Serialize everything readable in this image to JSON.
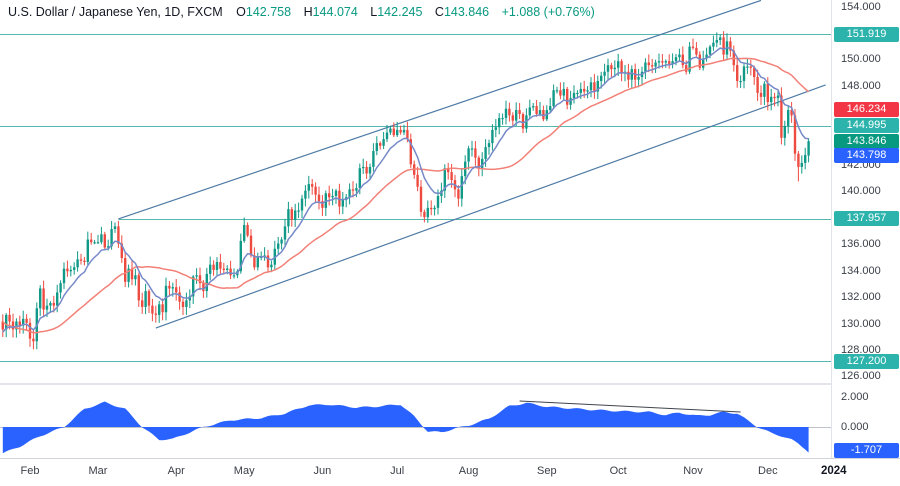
{
  "header": {
    "symbol_title": "U.S. Dollar / Japanese Yen, 1D, FXCM",
    "o_label": "O",
    "o_value": "142.758",
    "h_label": "H",
    "h_value": "144.074",
    "l_label": "L",
    "l_value": "142.245",
    "c_label": "C",
    "c_value": "143.846",
    "change": "+1.088 (+0.76%)"
  },
  "colors": {
    "up": "#119988",
    "down": "#ee4b40",
    "ma_fast": "#7689c8",
    "ma_slow": "#f28077",
    "level": "#54b8b1",
    "channel": "#4f7ba6",
    "osc_fill": "#2962ff",
    "osc_zero": "#c0c3ca",
    "osc_trendline": "#40444c",
    "badge_teal": "#2bb3ac",
    "badge_red": "#f23645",
    "badge_green": "#089981",
    "badge_blue": "#2962ff"
  },
  "price_axis": {
    "plain_ticks": [
      154,
      150,
      148,
      142,
      140,
      136,
      134,
      132,
      130,
      128,
      126
    ],
    "badges": [
      {
        "label": "151.919",
        "price": 151.919,
        "color": "teal"
      },
      {
        "label": "146.234",
        "price": 146.234,
        "color": "red"
      },
      {
        "label": "144.995",
        "price": 144.995,
        "color": "teal"
      },
      {
        "label": "143.846",
        "price": 143.846,
        "color": "green"
      },
      {
        "label": "143.798",
        "price": 143.798,
        "color": "blue",
        "stack_after": 143.846
      },
      {
        "label": "137.957",
        "price": 137.957,
        "color": "teal"
      },
      {
        "label": "127.200",
        "price": 127.2,
        "color": "teal"
      }
    ]
  },
  "indicator_axis": {
    "ticks": [
      2,
      0,
      -2
    ],
    "badge": {
      "label": "-1.707",
      "value": -1.707,
      "color": "blue"
    }
  },
  "time_axis": {
    "months": [
      [
        "Feb",
        8
      ],
      [
        "Mar",
        28
      ],
      [
        "Apr",
        51
      ],
      [
        "May",
        71
      ],
      [
        "Jun",
        94
      ],
      [
        "Jul",
        116
      ],
      [
        "Aug",
        137
      ],
      [
        "Sep",
        160
      ],
      [
        "Oct",
        181
      ],
      [
        "Nov",
        203
      ],
      [
        "Dec",
        225
      ]
    ],
    "year_label": "2024"
  },
  "chart_data": {
    "type": "candlestick_with_oscillator",
    "title": "U.S. Dollar / Japanese Yen, 1D, FXCM",
    "price_range": [
      126,
      154
    ],
    "ma_fast_period": 9,
    "ma_slow_period": 30,
    "warmup_closes": [
      133.5,
      133.0,
      132.6,
      132.2,
      132.5,
      132.0,
      131.6,
      131.9,
      132.0,
      131.5,
      131.1,
      130.7,
      130.3,
      129.9,
      129.5,
      129.1,
      128.7,
      128.4,
      128.0,
      127.6,
      127.3,
      127.6,
      128.0,
      128.4,
      128.8,
      129.2,
      129.6,
      130.0,
      129.8,
      130.2
    ],
    "closes": [
      129.6,
      130.7,
      130.2,
      129.6,
      130.2,
      129.9,
      130.4,
      130.1,
      128.9,
      128.7,
      131.2,
      132.7,
      131.1,
      131.4,
      131.6,
      131.4,
      132.4,
      133.1,
      134.2,
      134.0,
      134.1,
      134.3,
      134.9,
      134.8,
      134.7,
      136.4,
      136.2,
      136.2,
      136.2,
      136.8,
      135.8,
      135.9,
      137.2,
      137.4,
      136.1,
      135.0,
      133.2,
      134.2,
      133.4,
      133.7,
      131.8,
      131.3,
      132.5,
      131.4,
      130.8,
      130.7,
      131.5,
      130.9,
      132.9,
      132.7,
      132.8,
      132.4,
      131.7,
      131.3,
      131.8,
      132.1,
      133.6,
      133.7,
      133.1,
      132.5,
      133.8,
      134.5,
      134.1,
      134.7,
      134.2,
      134.1,
      134.2,
      133.7,
      133.7,
      134.0,
      136.3,
      137.5,
      136.7,
      135.2,
      134.3,
      135.1,
      135.1,
      135.2,
      134.3,
      134.5,
      135.7,
      136.1,
      136.4,
      137.4,
      138.7,
      137.9,
      138.6,
      138.6,
      139.5,
      140.1,
      140.6,
      140.4,
      139.8,
      139.3,
      138.8,
      139.9,
      139.6,
      139.7,
      140.1,
      138.9,
      139.4,
      139.6,
      140.2,
      140.1,
      140.3,
      141.8,
      141.9,
      141.4,
      141.9,
      143.1,
      143.7,
      143.5,
      144.0,
      144.5,
      144.8,
      144.3,
      144.7,
      144.5,
      144.7,
      144.0,
      142.1,
      141.3,
      140.4,
      138.5,
      138.1,
      138.8,
      138.7,
      138.8,
      139.7,
      140.1,
      141.8,
      141.5,
      140.9,
      140.2,
      139.5,
      141.2,
      142.3,
      143.3,
      143.3,
      142.6,
      141.8,
      142.5,
      143.4,
      143.7,
      144.7,
      144.9,
      145.6,
      145.6,
      146.3,
      145.8,
      145.4,
      146.2,
      145.9,
      144.8,
      145.8,
      146.4,
      146.5,
      145.9,
      146.2,
      145.5,
      146.2,
      146.5,
      147.7,
      147.7,
      147.3,
      147.8,
      146.6,
      147.1,
      147.5,
      147.5,
      147.8,
      147.6,
      147.7,
      148.3,
      147.6,
      148.4,
      148.8,
      149.1,
      149.6,
      149.3,
      149.4,
      149.9,
      149.0,
      149.1,
      148.5,
      149.3,
      148.5,
      148.7,
      149.1,
      149.8,
      149.6,
      149.5,
      149.8,
      149.9,
      149.8,
      149.9,
      149.7,
      149.9,
      150.2,
      150.4,
      149.6,
      149.1,
      151.0,
      150.9,
      150.4,
      149.4,
      150.1,
      150.4,
      151.0,
      151.3,
      151.5,
      151.7,
      150.4,
      151.4,
      150.7,
      149.6,
      148.4,
      148.4,
      149.5,
      149.5,
      149.4,
      148.7,
      147.5,
      147.2,
      148.2,
      146.8,
      147.2,
      147.1,
      147.3,
      144.1,
      145.0,
      146.2,
      145.8,
      142.9,
      141.9,
      142.2,
      142.8,
      143.846
    ],
    "last_candle": {
      "open": 142.758,
      "high": 144.074,
      "low": 142.245,
      "close": 143.846
    },
    "special_bars": {
      "211": {
        "high": 151.919
      },
      "229": {
        "low": 143.6
      },
      "234": {
        "low": 140.8
      }
    },
    "levels": [
      {
        "price": 151.919,
        "from_index": null
      },
      {
        "price": 144.995,
        "from_index": null
      },
      {
        "price": 137.957,
        "from_index": 34
      },
      {
        "price": 127.2,
        "from_index": null
      }
    ],
    "channel_lines": [
      {
        "i1": 34,
        "p1": 137.96,
        "i2": 223,
        "p2": 154.5
      },
      {
        "i1": 45,
        "p1": 129.7,
        "i2": 242,
        "p2": 148.1
      }
    ],
    "oscillator": {
      "points": [
        [
          0,
          -1.75
        ],
        [
          5,
          -1.3
        ],
        [
          11,
          -0.6
        ],
        [
          18,
          0.0
        ],
        [
          24,
          1.2
        ],
        [
          30,
          1.65
        ],
        [
          36,
          1.2
        ],
        [
          41,
          0.0
        ],
        [
          46,
          -0.85
        ],
        [
          50,
          -0.8
        ],
        [
          59,
          0.0
        ],
        [
          67,
          0.45
        ],
        [
          76,
          0.6
        ],
        [
          83,
          0.9
        ],
        [
          90,
          1.45
        ],
        [
          96,
          1.5
        ],
        [
          104,
          1.3
        ],
        [
          109,
          1.35
        ],
        [
          117,
          1.5
        ],
        [
          121,
          0.7
        ],
        [
          125,
          -0.3
        ],
        [
          129,
          -0.35
        ],
        [
          133,
          -0.1
        ],
        [
          137,
          0.1
        ],
        [
          143,
          0.55
        ],
        [
          149,
          1.4
        ],
        [
          154,
          1.6
        ],
        [
          160,
          1.35
        ],
        [
          173,
          1.15
        ],
        [
          182,
          1.05
        ],
        [
          190,
          1.0
        ],
        [
          195,
          0.8
        ],
        [
          199,
          0.95
        ],
        [
          204,
          0.75
        ],
        [
          208,
          0.8
        ],
        [
          212,
          1.0
        ],
        [
          216,
          0.9
        ],
        [
          220,
          0.3
        ],
        [
          222,
          0.0
        ],
        [
          226,
          -0.4
        ],
        [
          229,
          -0.6
        ],
        [
          232,
          -0.85
        ],
        [
          234,
          -1.1
        ],
        [
          236,
          -1.45
        ],
        [
          237,
          -1.707
        ]
      ],
      "trendline": {
        "i1": 152,
        "v1": 1.73,
        "i2": 217,
        "v2": 1.0
      },
      "last_value": -1.707
    }
  }
}
